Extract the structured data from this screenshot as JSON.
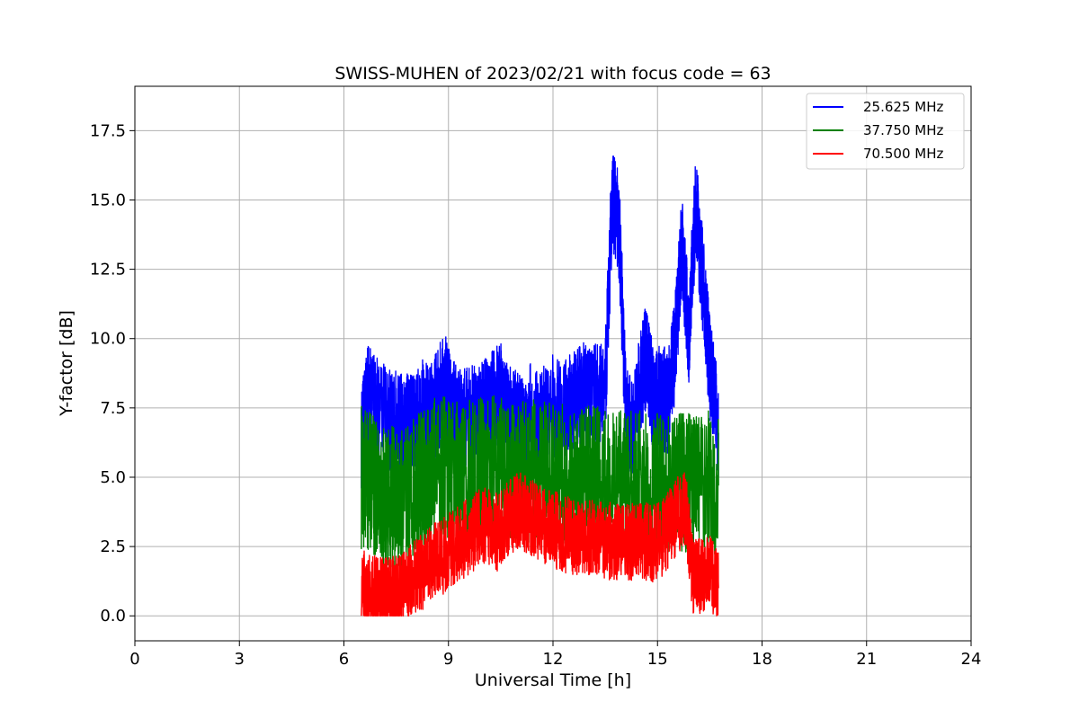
{
  "chart_data": {
    "type": "line",
    "title": "SWISS-MUHEN of 2023/02/21 with focus code = 63",
    "xlabel": "Universal Time [h]",
    "ylabel": "Y-factor [dB]",
    "xlim": [
      0,
      24
    ],
    "ylim": [
      -0.9,
      19.1
    ],
    "x_ticks": [
      0,
      3,
      6,
      9,
      12,
      15,
      18,
      21,
      24
    ],
    "x_tick_labels": [
      "0",
      "3",
      "6",
      "9",
      "12",
      "15",
      "18",
      "21",
      "24"
    ],
    "y_ticks": [
      0.0,
      2.5,
      5.0,
      7.5,
      10.0,
      12.5,
      15.0,
      17.5
    ],
    "y_tick_labels": [
      "0.0",
      "2.5",
      "5.0",
      "7.5",
      "10.0",
      "12.5",
      "15.0",
      "17.5"
    ],
    "grid": true,
    "legend_position": "top-right",
    "series": [
      {
        "name": "25.625 MHz",
        "color": "#0000ff",
        "x": [
          6.5,
          6.6,
          6.7,
          7.0,
          7.5,
          7.8,
          8.0,
          8.3,
          8.5,
          8.7,
          8.9,
          9.1,
          9.3,
          9.6,
          9.9,
          10.2,
          10.5,
          10.7,
          10.9,
          11.1,
          11.3,
          11.6,
          11.9,
          12.3,
          12.6,
          12.9,
          13.2,
          13.5,
          13.7,
          13.9,
          14.1,
          14.3,
          14.5,
          14.7,
          14.9,
          15.1,
          15.3,
          15.5,
          15.7,
          15.9,
          16.1,
          16.3,
          16.5,
          16.75
        ],
        "y": [
          6.5,
          7.2,
          8.0,
          7.3,
          7.0,
          6.8,
          7.1,
          7.4,
          7.2,
          7.8,
          8.5,
          7.4,
          7.0,
          7.1,
          7.2,
          7.6,
          8.0,
          7.4,
          7.2,
          6.6,
          7.3,
          6.8,
          7.6,
          7.4,
          7.7,
          8.0,
          7.9,
          8.2,
          15.2,
          14.0,
          7.2,
          6.5,
          8.4,
          9.5,
          7.5,
          8.0,
          7.6,
          9.6,
          13.5,
          10.2,
          14.8,
          12.0,
          9.0,
          6.6
        ]
      },
      {
        "name": "37.750 MHz",
        "color": "#008000",
        "x": [
          6.5,
          6.8,
          7.0,
          7.3,
          7.6,
          8.0,
          8.3,
          8.6,
          9.0,
          9.4,
          9.8,
          10.2,
          10.6,
          11.0,
          11.4,
          11.8,
          12.2,
          12.6,
          13.0,
          13.4,
          13.8,
          14.2,
          14.6,
          15.0,
          15.4,
          15.8,
          16.2,
          16.75
        ],
        "y": [
          5.0,
          4.9,
          4.2,
          4.3,
          4.2,
          4.6,
          5.1,
          5.3,
          5.4,
          5.3,
          5.2,
          5.4,
          5.3,
          5.2,
          5.2,
          5.1,
          5.1,
          5.0,
          5.0,
          4.9,
          4.9,
          4.8,
          4.8,
          4.7,
          4.7,
          4.8,
          4.9,
          4.7
        ]
      },
      {
        "name": "70.500 MHz",
        "color": "#ff0000",
        "x": [
          6.5,
          6.8,
          7.1,
          7.4,
          7.7,
          8.0,
          8.3,
          8.6,
          8.9,
          9.2,
          9.5,
          9.8,
          10.1,
          10.4,
          10.7,
          11.0,
          11.3,
          11.6,
          11.9,
          12.2,
          12.5,
          12.8,
          13.1,
          13.4,
          13.7,
          14.0,
          14.3,
          14.6,
          14.9,
          15.2,
          15.5,
          15.8,
          16.0,
          16.2,
          16.5,
          16.75
        ],
        "y": [
          1.0,
          0.8,
          0.7,
          0.8,
          0.9,
          1.3,
          1.6,
          2.0,
          2.2,
          2.5,
          2.8,
          3.1,
          3.3,
          3.0,
          3.5,
          3.8,
          3.6,
          3.4,
          3.2,
          3.0,
          2.9,
          2.8,
          2.8,
          2.7,
          2.7,
          2.6,
          2.7,
          2.7,
          2.6,
          2.9,
          3.5,
          4.0,
          1.5,
          1.4,
          1.6,
          1.0
        ]
      }
    ]
  }
}
